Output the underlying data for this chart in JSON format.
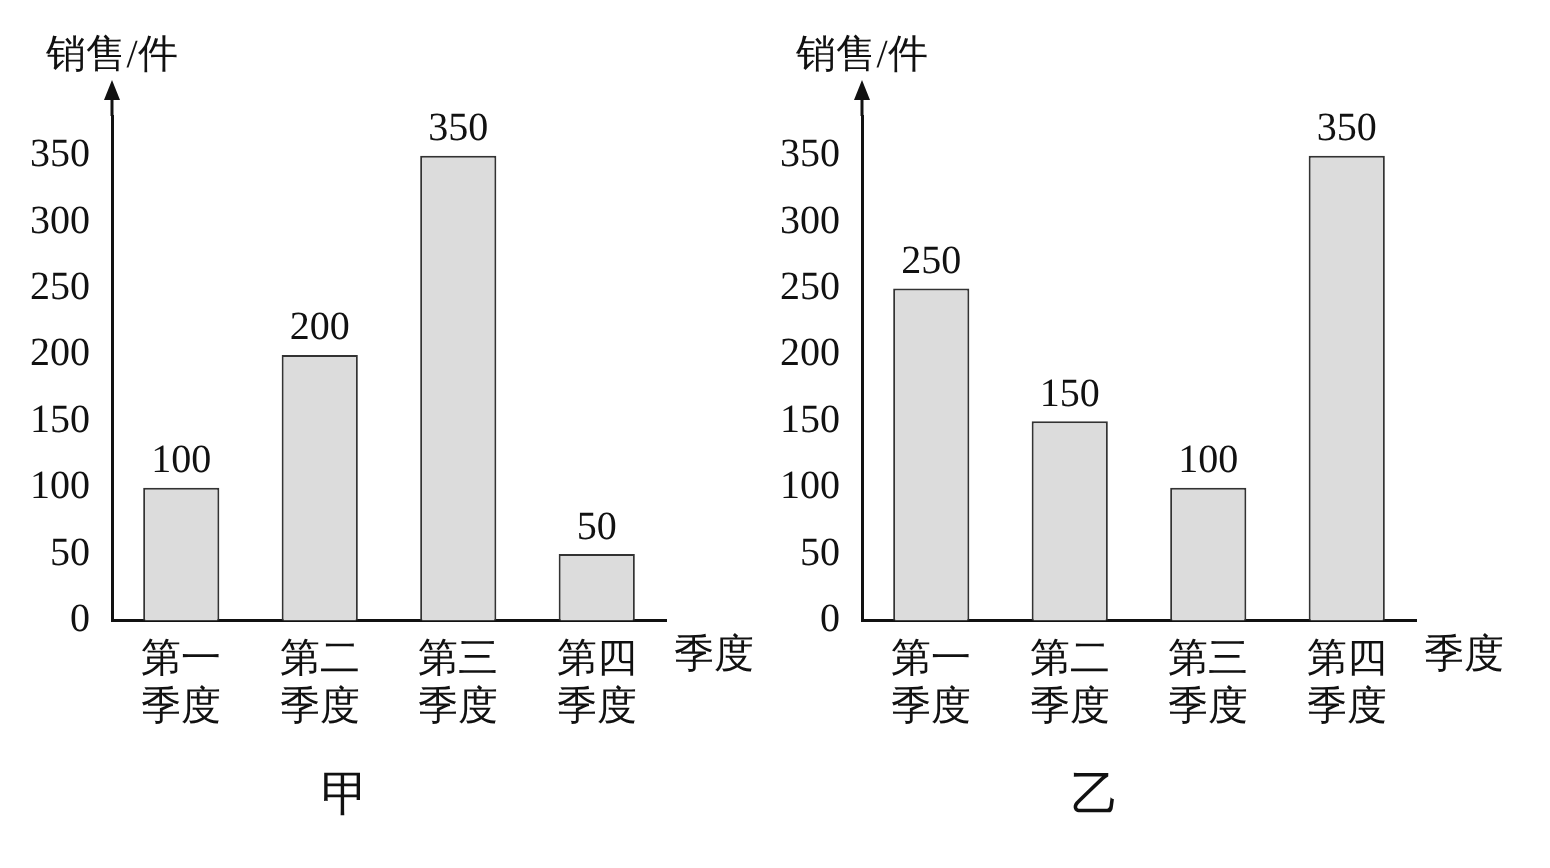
{
  "chart_data": [
    {
      "type": "bar",
      "title": "甲",
      "xlabel": "季度",
      "ylabel": "销售/件",
      "categories": [
        "第一季度",
        "第二季度",
        "第三季度",
        "第四季度"
      ],
      "values": [
        100,
        200,
        350,
        50
      ],
      "color": "#dcdcdc",
      "ylim": [
        0,
        380
      ],
      "yticks": [
        0,
        50,
        100,
        150,
        200,
        250,
        300,
        350
      ],
      "data_labels": true,
      "grid": false,
      "legend": false
    },
    {
      "type": "bar",
      "title": "乙",
      "xlabel": "季度",
      "ylabel": "销售/件",
      "categories": [
        "第一季度",
        "第二季度",
        "第三季度",
        "第四季度"
      ],
      "values": [
        250,
        150,
        100,
        350
      ],
      "color": "#dcdcdc",
      "ylim": [
        0,
        380
      ],
      "yticks": [
        0,
        50,
        100,
        150,
        200,
        250,
        300,
        350
      ],
      "data_labels": true,
      "grid": false,
      "legend": false
    }
  ]
}
